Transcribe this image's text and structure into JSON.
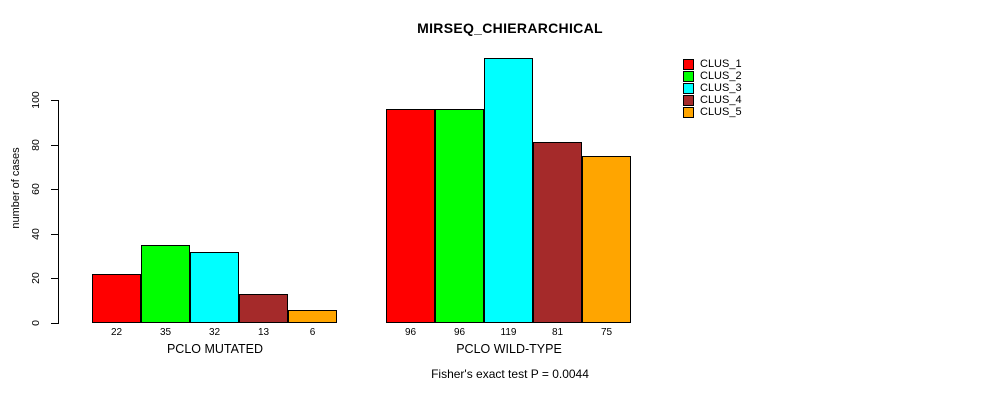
{
  "title": "MIRSEQ_CHIERARCHICAL",
  "caption": "Fisher's exact test P = 0.0044",
  "chart_data": {
    "type": "bar",
    "title": "MIRSEQ_CHIERARCHICAL",
    "subtitle": "Fisher's exact test P = 0.0044",
    "xlabel": "",
    "ylabel": "number of cases",
    "ylim": [
      0,
      120
    ],
    "yticks": [
      0,
      20,
      40,
      60,
      80,
      100
    ],
    "grid": false,
    "legend_position": "right-outside",
    "bar_value_labels_shown": true,
    "groups": [
      {
        "label": "PCLO MUTATED",
        "values": [
          22,
          35,
          32,
          13,
          6
        ]
      },
      {
        "label": "PCLO WILD-TYPE",
        "values": [
          96,
          96,
          119,
          81,
          75
        ]
      }
    ],
    "series": [
      {
        "name": "CLUS_1",
        "color": "#FF0000"
      },
      {
        "name": "CLUS_2",
        "color": "#00FF00"
      },
      {
        "name": "CLUS_3",
        "color": "#00FFFF"
      },
      {
        "name": "CLUS_4",
        "color": "#A52A2A"
      },
      {
        "name": "CLUS_5",
        "color": "#FFA500"
      }
    ]
  }
}
